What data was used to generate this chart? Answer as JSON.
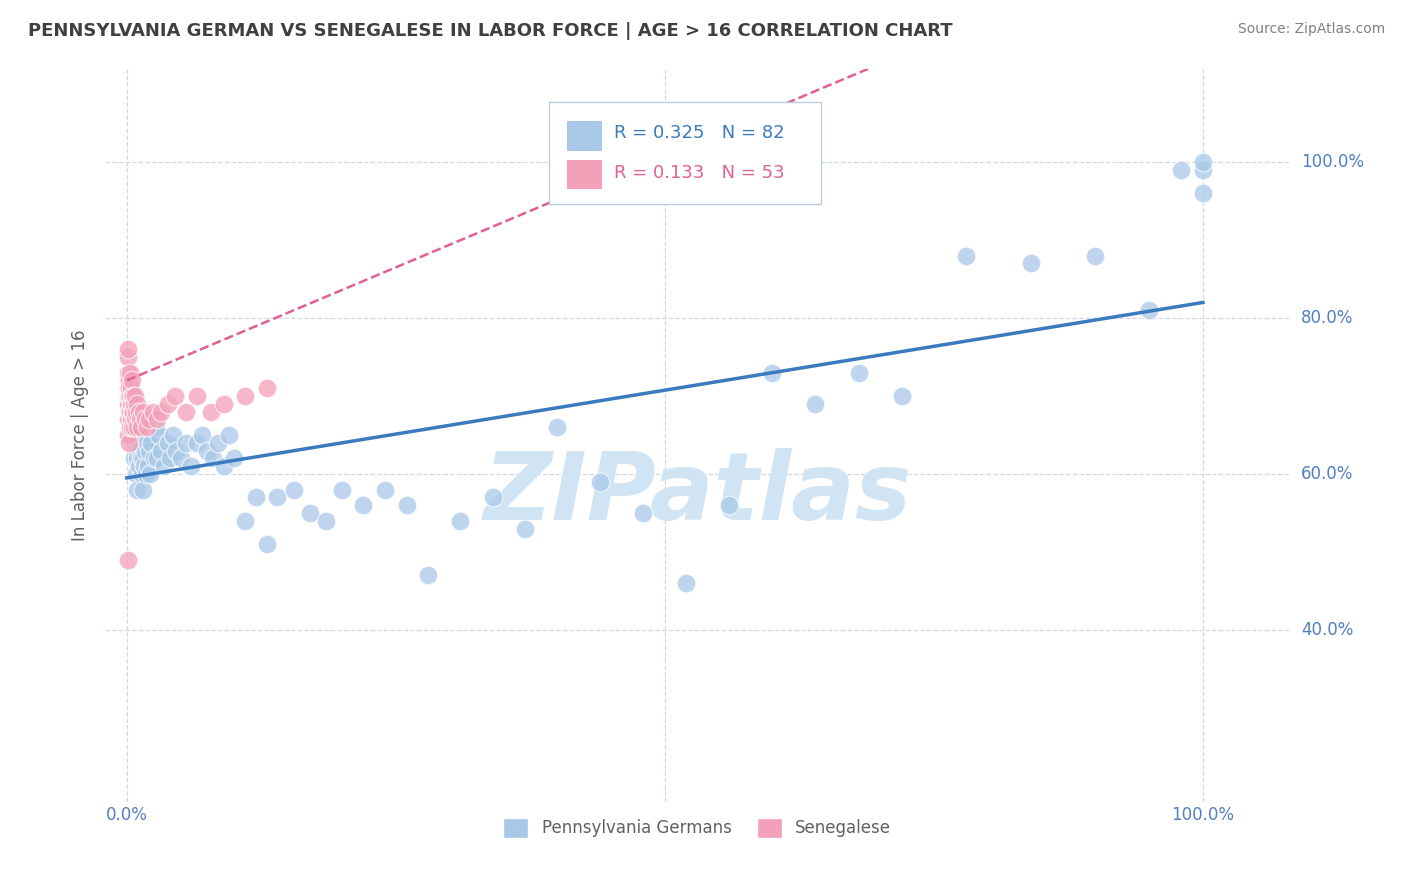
{
  "title": "PENNSYLVANIA GERMAN VS SENEGALESE IN LABOR FORCE | AGE > 16 CORRELATION CHART",
  "source_text": "Source: ZipAtlas.com",
  "ylabel": "In Labor Force | Age > 16",
  "xlim": [
    -0.02,
    1.08
  ],
  "ylim": [
    0.18,
    1.12
  ],
  "xtick_vals": [
    0.0,
    1.0
  ],
  "xtick_labels": [
    "0.0%",
    "100.0%"
  ],
  "ytick_vals": [
    0.4,
    0.6,
    0.8,
    1.0
  ],
  "ytick_labels": [
    "40.0%",
    "60.0%",
    "80.0%",
    "100.0%"
  ],
  "legend_r1": "R = 0.325",
  "legend_n1": "N = 82",
  "legend_r2": "R = 0.133",
  "legend_n2": "N = 53",
  "legend_foot1": "Pennsylvania Germans",
  "legend_foot2": "Senegalese",
  "blue_color": "#a8c8e8",
  "pink_color": "#f4a0b8",
  "blue_line_color": "#3a7abf",
  "pink_line_color": "#e06090",
  "blue_trend": [
    0.0,
    1.0,
    0.595,
    0.82
  ],
  "pink_trend": [
    0.0,
    1.0,
    0.72,
    1.3
  ],
  "grid_color": "#d0d8e8",
  "title_color": "#404040",
  "axis_color": "#5080c0",
  "source_color": "#808080",
  "watermark_color": "#d0e4f4",
  "blue_dots_x": [
    0.005,
    0.005,
    0.007,
    0.007,
    0.008,
    0.009,
    0.009,
    0.01,
    0.01,
    0.01,
    0.011,
    0.011,
    0.012,
    0.012,
    0.013,
    0.014,
    0.014,
    0.015,
    0.015,
    0.016,
    0.016,
    0.017,
    0.018,
    0.019,
    0.02,
    0.02,
    0.021,
    0.022,
    0.023,
    0.025,
    0.027,
    0.028,
    0.03,
    0.032,
    0.035,
    0.038,
    0.04,
    0.043,
    0.046,
    0.05,
    0.055,
    0.06,
    0.065,
    0.07,
    0.075,
    0.08,
    0.085,
    0.09,
    0.095,
    0.1,
    0.11,
    0.12,
    0.13,
    0.14,
    0.155,
    0.17,
    0.185,
    0.2,
    0.22,
    0.24,
    0.26,
    0.28,
    0.31,
    0.34,
    0.37,
    0.4,
    0.44,
    0.48,
    0.52,
    0.56,
    0.6,
    0.64,
    0.68,
    0.72,
    0.78,
    0.84,
    0.9,
    0.95,
    0.98,
    1.0,
    1.0,
    1.0
  ],
  "blue_dots_y": [
    0.65,
    0.69,
    0.62,
    0.66,
    0.64,
    0.6,
    0.67,
    0.58,
    0.62,
    0.65,
    0.61,
    0.64,
    0.63,
    0.66,
    0.62,
    0.6,
    0.65,
    0.58,
    0.62,
    0.61,
    0.65,
    0.63,
    0.6,
    0.64,
    0.61,
    0.66,
    0.63,
    0.6,
    0.64,
    0.62,
    0.66,
    0.62,
    0.65,
    0.63,
    0.61,
    0.64,
    0.62,
    0.65,
    0.63,
    0.62,
    0.64,
    0.61,
    0.64,
    0.65,
    0.63,
    0.62,
    0.64,
    0.61,
    0.65,
    0.62,
    0.54,
    0.57,
    0.51,
    0.57,
    0.58,
    0.55,
    0.54,
    0.58,
    0.56,
    0.58,
    0.56,
    0.47,
    0.54,
    0.57,
    0.53,
    0.66,
    0.59,
    0.55,
    0.46,
    0.56,
    0.73,
    0.69,
    0.73,
    0.7,
    0.88,
    0.87,
    0.88,
    0.81,
    0.99,
    0.99,
    0.96,
    1.0
  ],
  "pink_dots_x": [
    0.001,
    0.001,
    0.001,
    0.001,
    0.001,
    0.001,
    0.001,
    0.001,
    0.001,
    0.002,
    0.002,
    0.002,
    0.002,
    0.002,
    0.003,
    0.003,
    0.003,
    0.003,
    0.004,
    0.004,
    0.004,
    0.005,
    0.005,
    0.005,
    0.005,
    0.006,
    0.006,
    0.007,
    0.007,
    0.008,
    0.008,
    0.009,
    0.01,
    0.01,
    0.011,
    0.012,
    0.013,
    0.015,
    0.017,
    0.019,
    0.021,
    0.024,
    0.028,
    0.032,
    0.038,
    0.045,
    0.055,
    0.065,
    0.078,
    0.09,
    0.11,
    0.13,
    0.001
  ],
  "pink_dots_y": [
    0.69,
    0.71,
    0.72,
    0.73,
    0.75,
    0.76,
    0.7,
    0.67,
    0.65,
    0.7,
    0.72,
    0.68,
    0.64,
    0.71,
    0.7,
    0.68,
    0.66,
    0.73,
    0.69,
    0.67,
    0.71,
    0.7,
    0.68,
    0.72,
    0.66,
    0.7,
    0.68,
    0.69,
    0.66,
    0.67,
    0.7,
    0.68,
    0.69,
    0.66,
    0.68,
    0.67,
    0.66,
    0.68,
    0.67,
    0.66,
    0.67,
    0.68,
    0.67,
    0.68,
    0.69,
    0.7,
    0.68,
    0.7,
    0.68,
    0.69,
    0.7,
    0.71,
    0.49
  ]
}
